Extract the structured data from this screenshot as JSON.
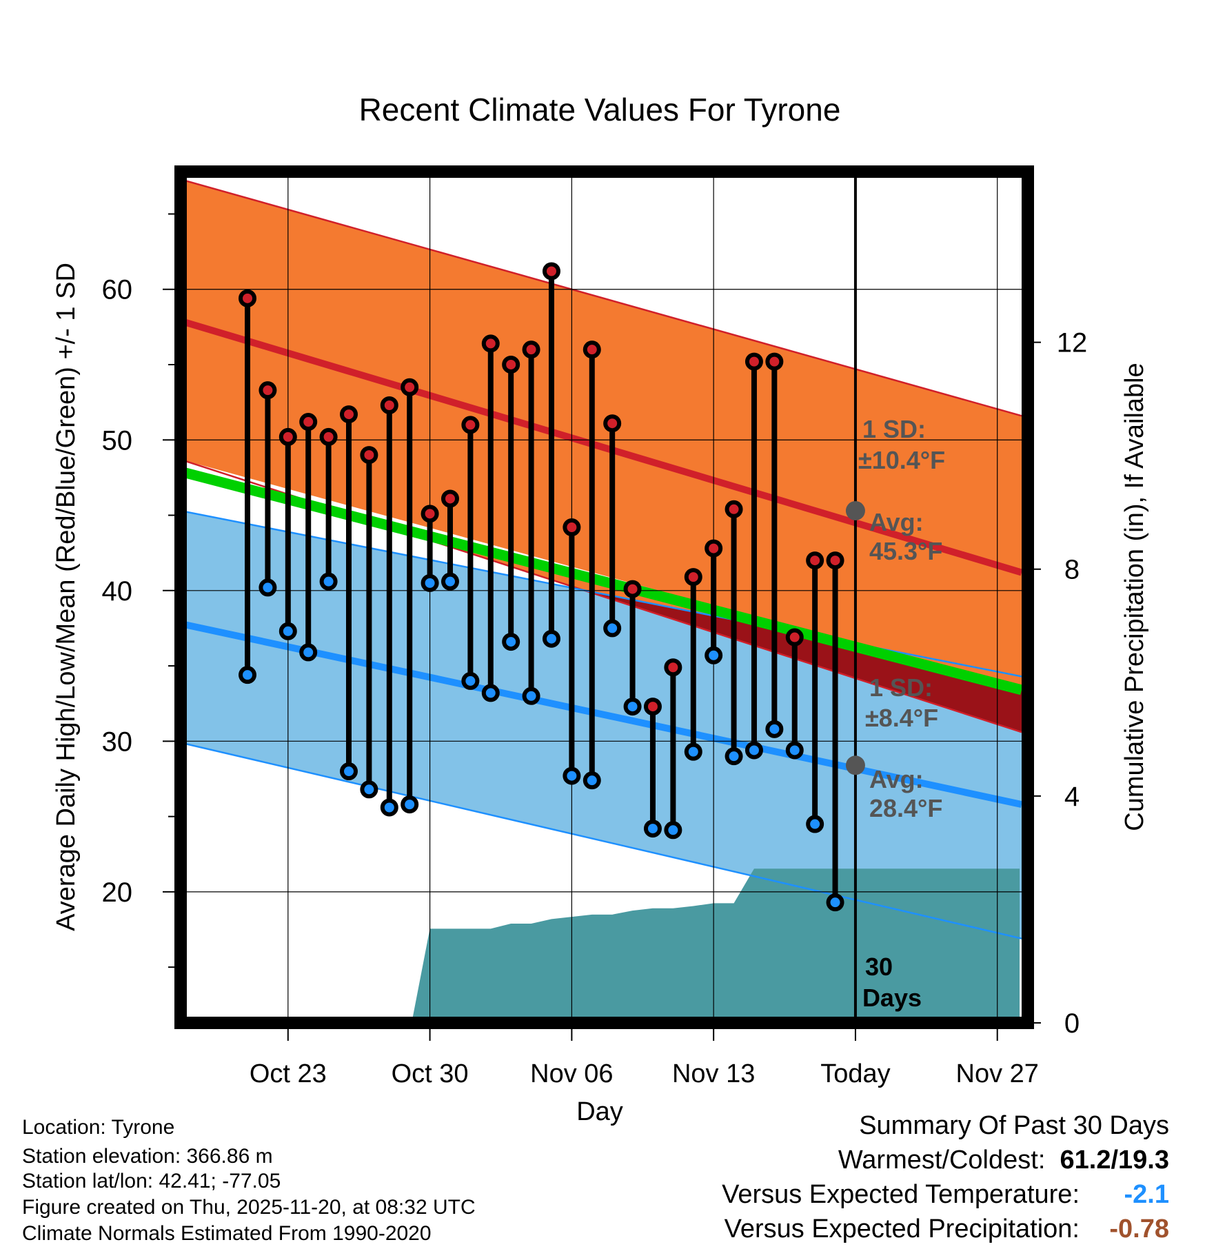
{
  "chart_data": {
    "type": "line",
    "title": "Recent Climate Values For Tyrone",
    "xlabel": "Day",
    "ylabel": "Average Daily High/Low/Mean (Red/Blue/Green) +/- 1 SD",
    "y2label": "Cumulative Precipitation (in), If Available",
    "xlim": [
      -5.3,
      36.2
    ],
    "ylim": [
      11.3,
      67.4
    ],
    "y2lim": [
      0,
      14.9
    ],
    "x_ticks": [
      {
        "x": 0,
        "label": "Oct 23"
      },
      {
        "x": 7,
        "label": "Oct 30"
      },
      {
        "x": 14,
        "label": "Nov 06"
      },
      {
        "x": 21,
        "label": "Nov 13"
      },
      {
        "x": 28,
        "label": "Today"
      },
      {
        "x": 35,
        "label": "Nov 27"
      }
    ],
    "y_ticks": [
      20,
      30,
      40,
      50,
      60
    ],
    "y2_ticks": [
      0,
      4,
      8,
      12
    ],
    "today_x": 28,
    "today_label": "30 Days",
    "normals": {
      "high_avg": [
        57.9,
        41.2
      ],
      "high_upper": [
        67.3,
        51.6
      ],
      "high_lower": [
        48.7,
        30.6
      ],
      "low_avg": [
        37.8,
        25.8
      ],
      "low_upper": [
        45.3,
        34.3
      ],
      "low_lower": [
        29.9,
        16.9
      ],
      "mean_avg": [
        47.9,
        33.4
      ]
    },
    "annotations": {
      "high_sd": "1 SD:",
      "high_sd_val": "±10.4°F",
      "high_avg_label": "Avg:",
      "high_avg_val": "45.3°F",
      "low_sd": "1 SD:",
      "low_sd_val": "±8.4°F",
      "low_avg_label": "Avg:",
      "low_avg_val": "28.4°F",
      "today_high_avg": 45.3,
      "today_low_avg": 28.4
    },
    "series": [
      {
        "name": "Daily High",
        "color": "#d0202a",
        "values": [
          59.4,
          53.3,
          50.2,
          51.2,
          50.2,
          51.7,
          49.0,
          52.3,
          53.5,
          45.1,
          46.1,
          51.0,
          56.4,
          55.0,
          56.0,
          61.2,
          44.2,
          56.0,
          51.1,
          40.1,
          32.3,
          34.9,
          40.9,
          42.8,
          45.4,
          55.2,
          55.2,
          36.9,
          42.0,
          42.0
        ]
      },
      {
        "name": "Daily Low",
        "color": "#1e90ff",
        "values": [
          34.4,
          40.2,
          37.3,
          35.9,
          40.6,
          28.0,
          26.8,
          25.6,
          25.8,
          40.5,
          40.6,
          34.0,
          33.2,
          36.6,
          33.0,
          36.8,
          27.7,
          27.4,
          37.5,
          32.3,
          24.2,
          24.1,
          29.3,
          35.7,
          29.0,
          29.4,
          30.8,
          29.4,
          24.5,
          19.3
        ]
      },
      {
        "name": "Cumulative Precipitation",
        "color": "#4a9aa1",
        "x": [
          -1,
          6.1,
          7,
          10,
          11,
          12,
          13,
          14,
          15,
          16,
          17,
          18,
          19,
          20,
          21,
          22,
          23,
          24,
          25,
          26,
          36.1
        ],
        "values": [
          0,
          0,
          1.66,
          1.66,
          1.75,
          1.75,
          1.83,
          1.87,
          1.91,
          1.91,
          1.98,
          2.02,
          2.02,
          2.06,
          2.11,
          2.11,
          2.72,
          2.72,
          2.72,
          2.72,
          2.72
        ]
      }
    ]
  },
  "info": {
    "location": "Location: Tyrone",
    "elevation": "Station elevation: 366.86 m",
    "latlon": "Station lat/lon: 42.41; -77.05",
    "created": "Figure created on Thu, 2025-11-20, at 08:32 UTC",
    "normals": "Climate Normals Estimated From 1990-2020"
  },
  "summary": {
    "title": "Summary Of Past 30 Days",
    "warm_cold_label": "Warmest/Coldest:",
    "warm_cold_value": "61.2/19.3",
    "temp_label": "Versus Expected Temperature:",
    "temp_value": "-2.1",
    "precip_label": "Versus Expected Precipitation:",
    "precip_value": "-0.78",
    "temp_color": "#1e90ff",
    "precip_color": "#a0522d"
  }
}
